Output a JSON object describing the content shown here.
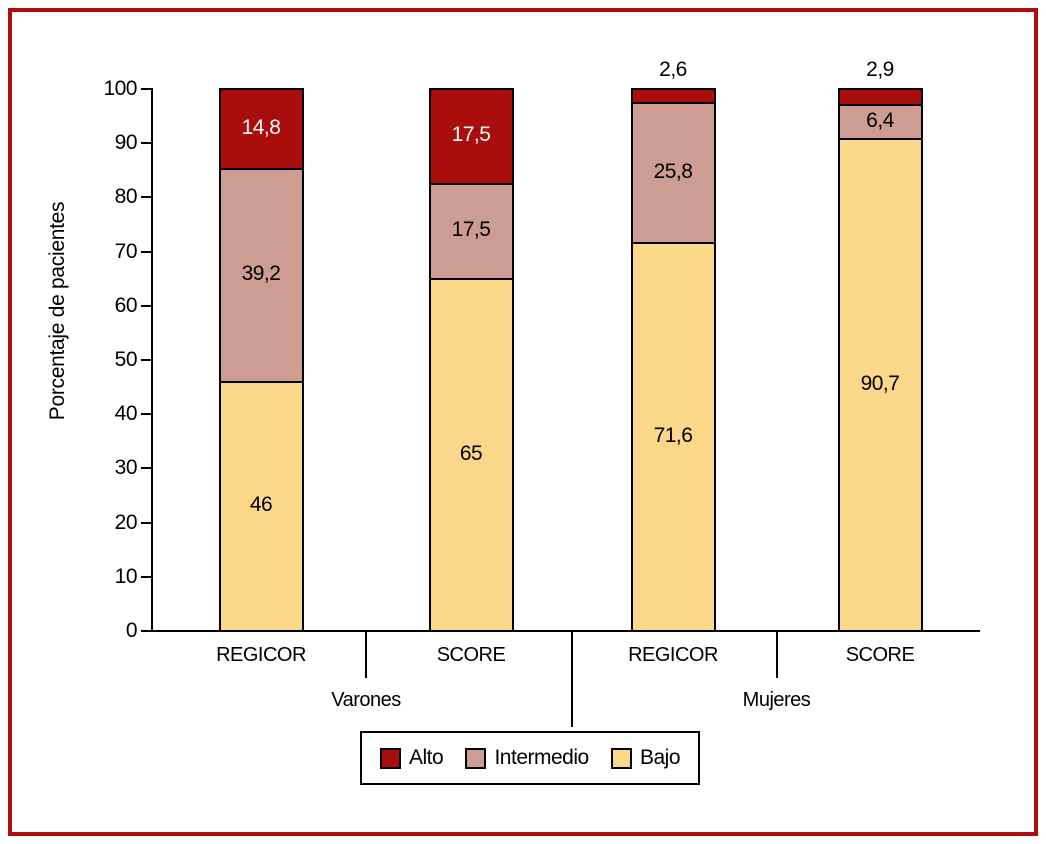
{
  "figure": {
    "frame_color": "#B00C0C",
    "background_color": "#FFFFFF"
  },
  "chart_data": {
    "type": "bar",
    "variant": "stacked-vertical",
    "title": "",
    "xlabel": "",
    "ylabel": "Porcentaje de pacientes",
    "ylim": [
      0,
      100
    ],
    "yticks": [
      0,
      10,
      20,
      30,
      40,
      50,
      60,
      70,
      80,
      90,
      100
    ],
    "grid": false,
    "decimal_separator": ",",
    "groups": [
      {
        "label": "Varones",
        "categories": [
          "REGICOR",
          "SCORE"
        ]
      },
      {
        "label": "Mujeres",
        "categories": [
          "REGICOR",
          "SCORE"
        ]
      }
    ],
    "categories": [
      "REGICOR",
      "SCORE",
      "REGICOR",
      "SCORE"
    ],
    "series": [
      {
        "name": "Bajo",
        "color": "#FBD78A",
        "label_color": "#000000",
        "values": [
          46,
          65,
          71.6,
          90.7
        ],
        "value_labels": [
          "46",
          "65",
          "71,6",
          "90,7"
        ]
      },
      {
        "name": "Intermedio",
        "color": "#CD9C93",
        "label_color": "#000000",
        "values": [
          39.2,
          17.5,
          25.8,
          6.4
        ],
        "value_labels": [
          "39,2",
          "17,5",
          "25,8",
          "6,4"
        ]
      },
      {
        "name": "Alto",
        "color": "#A90D0C",
        "label_color": "#FFFFFF",
        "values": [
          14.8,
          17.5,
          2.6,
          2.9
        ],
        "value_labels": [
          "14,8",
          "17,5",
          "2,6",
          "2,9"
        ]
      }
    ],
    "legend": {
      "position": "bottom",
      "entries": [
        "Alto",
        "Intermedio",
        "Bajo"
      ]
    }
  }
}
